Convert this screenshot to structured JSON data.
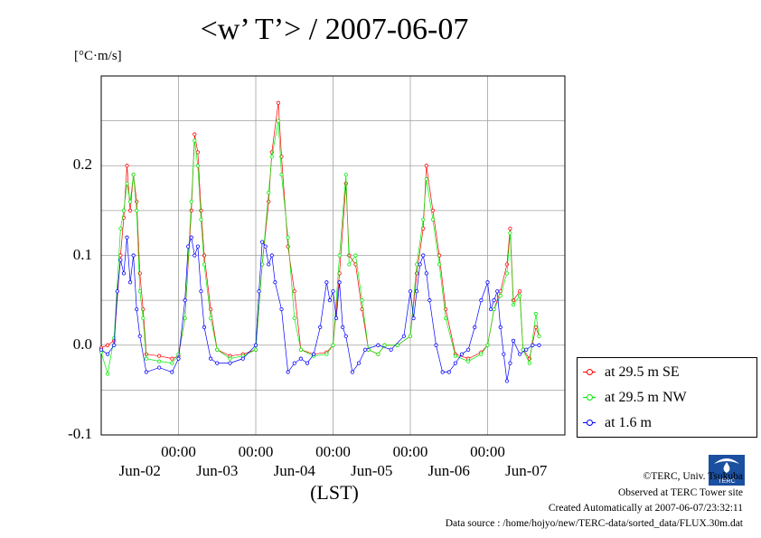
{
  "title": "<w’ T’> / 2007-06-07",
  "unit_label": "[°C·m/s]",
  "x_axis_label": "(LST)",
  "footer": {
    "copyright": "©TERC, Univ. Tsukuba",
    "observed": "Observed at TERC Tower site",
    "created": "Created Automatically at 2007-06-07/23:32:11",
    "source": "Data source : /home/hojyo/new/TERC-data/sorted_data/FLUX.30m.dat"
  },
  "logo_text": "TERC",
  "chart_data": {
    "type": "line",
    "title": "<w’ T’> / 2007-06-07",
    "xlabel": "(LST)",
    "ylabel": "[°C·m/s]",
    "x_range_hours": [
      0,
      144
    ],
    "ylim": [
      -0.1,
      0.3
    ],
    "y_ticks": [
      {
        "value": -0.1,
        "label": "-0.1"
      },
      {
        "value": 0.0,
        "label": "0.0"
      },
      {
        "value": 0.1,
        "label": "0.1"
      },
      {
        "value": 0.2,
        "label": "0.2"
      }
    ],
    "x_time_ticks": [
      {
        "hour": 24,
        "label": "00:00"
      },
      {
        "hour": 48,
        "label": "00:00"
      },
      {
        "hour": 72,
        "label": "00:00"
      },
      {
        "hour": 96,
        "label": "00:00"
      },
      {
        "hour": 120,
        "label": "00:00"
      }
    ],
    "x_date_labels": [
      {
        "hour": 12,
        "label": "Jun-02"
      },
      {
        "hour": 36,
        "label": "Jun-03"
      },
      {
        "hour": 60,
        "label": "Jun-04"
      },
      {
        "hour": 84,
        "label": "Jun-05"
      },
      {
        "hour": 108,
        "label": "Jun-06"
      },
      {
        "hour": 132,
        "label": "Jun-07"
      }
    ],
    "grid": true,
    "legend_position": "right",
    "series": [
      {
        "name": "at 29.5 m SE",
        "color": "#ff0000",
        "points": [
          [
            0,
            -0.003
          ],
          [
            2,
            0.0
          ],
          [
            4,
            0.005
          ],
          [
            6,
            0.1
          ],
          [
            7,
            0.142
          ],
          [
            8,
            0.2
          ],
          [
            9,
            0.15
          ],
          [
            10,
            0.19
          ],
          [
            11,
            0.16
          ],
          [
            12,
            0.08
          ],
          [
            13,
            0.04
          ],
          [
            14,
            -0.01
          ],
          [
            18,
            -0.012
          ],
          [
            22,
            -0.015
          ],
          [
            24,
            -0.012
          ],
          [
            26,
            0.03
          ],
          [
            28,
            0.15
          ],
          [
            29,
            0.235
          ],
          [
            30,
            0.215
          ],
          [
            31,
            0.15
          ],
          [
            32,
            0.1
          ],
          [
            34,
            0.04
          ],
          [
            36,
            -0.005
          ],
          [
            40,
            -0.012
          ],
          [
            44,
            -0.01
          ],
          [
            48,
            -0.005
          ],
          [
            50,
            0.09
          ],
          [
            52,
            0.16
          ],
          [
            53,
            0.215
          ],
          [
            55,
            0.27
          ],
          [
            56,
            0.21
          ],
          [
            58,
            0.11
          ],
          [
            60,
            0.06
          ],
          [
            62,
            -0.005
          ],
          [
            66,
            -0.01
          ],
          [
            70,
            -0.008
          ],
          [
            72,
            0.0
          ],
          [
            74,
            0.08
          ],
          [
            76,
            0.18
          ],
          [
            77,
            0.1
          ],
          [
            79,
            0.09
          ],
          [
            81,
            0.04
          ],
          [
            83,
            -0.005
          ],
          [
            86,
            -0.01
          ],
          [
            88,
            0.0
          ],
          [
            92,
            0.0
          ],
          [
            96,
            0.01
          ],
          [
            98,
            0.08
          ],
          [
            100,
            0.13
          ],
          [
            101,
            0.2
          ],
          [
            103,
            0.15
          ],
          [
            105,
            0.1
          ],
          [
            107,
            0.04
          ],
          [
            110,
            -0.01
          ],
          [
            114,
            -0.015
          ],
          [
            118,
            -0.008
          ],
          [
            120,
            0.0
          ],
          [
            122,
            0.04
          ],
          [
            124,
            0.06
          ],
          [
            126,
            0.09
          ],
          [
            127,
            0.13
          ],
          [
            128,
            0.05
          ],
          [
            130,
            0.06
          ],
          [
            131,
            -0.005
          ],
          [
            133,
            -0.015
          ],
          [
            135,
            0.02
          ],
          [
            136,
            0.01
          ]
        ]
      },
      {
        "name": "at 29.5 m NW",
        "color": "#00ee00",
        "points": [
          [
            0,
            -0.008
          ],
          [
            2,
            -0.032
          ],
          [
            4,
            0.008
          ],
          [
            6,
            0.13
          ],
          [
            7,
            0.15
          ],
          [
            8,
            0.18
          ],
          [
            9,
            0.16
          ],
          [
            10,
            0.19
          ],
          [
            11,
            0.15
          ],
          [
            12,
            0.06
          ],
          [
            13,
            0.03
          ],
          [
            14,
            -0.015
          ],
          [
            18,
            -0.018
          ],
          [
            22,
            -0.02
          ],
          [
            24,
            -0.01
          ],
          [
            26,
            0.03
          ],
          [
            28,
            0.16
          ],
          [
            29,
            0.228
          ],
          [
            30,
            0.2
          ],
          [
            31,
            0.14
          ],
          [
            32,
            0.09
          ],
          [
            34,
            0.03
          ],
          [
            36,
            -0.005
          ],
          [
            40,
            -0.015
          ],
          [
            44,
            -0.012
          ],
          [
            48,
            -0.005
          ],
          [
            50,
            0.09
          ],
          [
            52,
            0.17
          ],
          [
            53,
            0.21
          ],
          [
            55,
            0.25
          ],
          [
            56,
            0.19
          ],
          [
            58,
            0.12
          ],
          [
            60,
            0.03
          ],
          [
            62,
            -0.005
          ],
          [
            66,
            -0.012
          ],
          [
            70,
            -0.01
          ],
          [
            72,
            0.0
          ],
          [
            74,
            0.1
          ],
          [
            76,
            0.19
          ],
          [
            77,
            0.09
          ],
          [
            79,
            0.1
          ],
          [
            81,
            0.05
          ],
          [
            83,
            -0.005
          ],
          [
            86,
            -0.01
          ],
          [
            88,
            0.0
          ],
          [
            92,
            0.0
          ],
          [
            96,
            0.01
          ],
          [
            98,
            0.09
          ],
          [
            100,
            0.14
          ],
          [
            101,
            0.185
          ],
          [
            103,
            0.14
          ],
          [
            105,
            0.09
          ],
          [
            107,
            0.03
          ],
          [
            110,
            -0.012
          ],
          [
            114,
            -0.018
          ],
          [
            118,
            -0.01
          ],
          [
            120,
            0.0
          ],
          [
            122,
            0.04
          ],
          [
            124,
            0.055
          ],
          [
            126,
            0.08
          ],
          [
            127,
            0.125
          ],
          [
            128,
            0.045
          ],
          [
            130,
            0.055
          ],
          [
            131,
            -0.005
          ],
          [
            133,
            -0.02
          ],
          [
            135,
            0.035
          ],
          [
            136,
            0.01
          ]
        ]
      },
      {
        "name": "at 1.6 m",
        "color": "#0000ff",
        "points": [
          [
            0,
            -0.005
          ],
          [
            2,
            -0.01
          ],
          [
            4,
            0.0
          ],
          [
            5,
            0.06
          ],
          [
            6,
            0.095
          ],
          [
            7,
            0.08
          ],
          [
            8,
            0.12
          ],
          [
            9,
            0.07
          ],
          [
            10,
            0.1
          ],
          [
            11,
            0.04
          ],
          [
            12,
            0.01
          ],
          [
            14,
            -0.03
          ],
          [
            18,
            -0.025
          ],
          [
            22,
            -0.03
          ],
          [
            24,
            -0.015
          ],
          [
            26,
            0.05
          ],
          [
            27,
            0.11
          ],
          [
            28,
            0.12
          ],
          [
            29,
            0.1
          ],
          [
            30,
            0.11
          ],
          [
            31,
            0.06
          ],
          [
            32,
            0.02
          ],
          [
            34,
            -0.015
          ],
          [
            36,
            -0.02
          ],
          [
            40,
            -0.02
          ],
          [
            44,
            -0.015
          ],
          [
            48,
            0.0
          ],
          [
            49,
            0.06
          ],
          [
            50,
            0.115
          ],
          [
            51,
            0.11
          ],
          [
            52,
            0.09
          ],
          [
            53,
            0.1
          ],
          [
            54,
            0.07
          ],
          [
            56,
            0.04
          ],
          [
            58,
            -0.03
          ],
          [
            60,
            -0.02
          ],
          [
            62,
            -0.015
          ],
          [
            64,
            -0.02
          ],
          [
            66,
            -0.01
          ],
          [
            68,
            0.02
          ],
          [
            70,
            0.07
          ],
          [
            71,
            0.05
          ],
          [
            72,
            0.06
          ],
          [
            73,
            0.03
          ],
          [
            74,
            0.07
          ],
          [
            75,
            0.02
          ],
          [
            76,
            0.01
          ],
          [
            78,
            -0.03
          ],
          [
            80,
            -0.02
          ],
          [
            82,
            -0.005
          ],
          [
            86,
            0.0
          ],
          [
            90,
            -0.005
          ],
          [
            94,
            0.01
          ],
          [
            96,
            0.06
          ],
          [
            97,
            0.03
          ],
          [
            98,
            0.06
          ],
          [
            99,
            0.09
          ],
          [
            100,
            0.1
          ],
          [
            101,
            0.08
          ],
          [
            102,
            0.05
          ],
          [
            104,
            0.0
          ],
          [
            106,
            -0.03
          ],
          [
            108,
            -0.03
          ],
          [
            110,
            -0.02
          ],
          [
            112,
            -0.01
          ],
          [
            114,
            -0.005
          ],
          [
            116,
            0.02
          ],
          [
            118,
            0.05
          ],
          [
            120,
            0.07
          ],
          [
            121,
            0.04
          ],
          [
            122,
            0.05
          ],
          [
            123,
            0.06
          ],
          [
            124,
            0.02
          ],
          [
            125,
            -0.01
          ],
          [
            126,
            -0.04
          ],
          [
            127,
            -0.02
          ],
          [
            128,
            0.005
          ],
          [
            130,
            -0.01
          ],
          [
            132,
            -0.005
          ],
          [
            134,
            0.0
          ],
          [
            136,
            0.0
          ]
        ]
      }
    ]
  }
}
